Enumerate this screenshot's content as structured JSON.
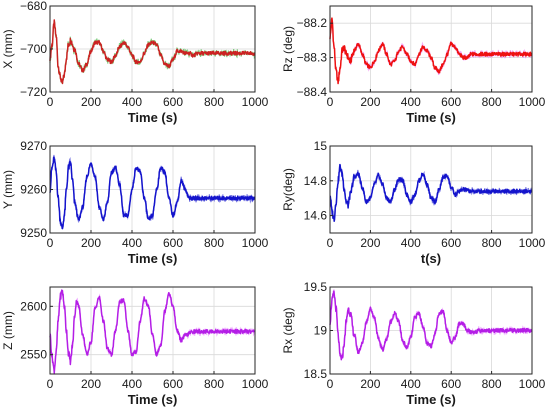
{
  "chart_data": [
    {
      "type": "line",
      "ylabel": "X (mm)",
      "xlabel": "Time (s)",
      "xlim": [
        0,
        1000
      ],
      "ylim": [
        -720,
        -680
      ],
      "xticks": [
        0,
        200,
        400,
        600,
        800,
        1000
      ],
      "yticks": [
        -680,
        -700,
        -720
      ],
      "grid": true,
      "color": "#cc2222",
      "band_color": "#22aa22",
      "series": [
        {
          "x": [
            0,
            10,
            20,
            30,
            40,
            50,
            60,
            70,
            80,
            90,
            100,
            120,
            140,
            160,
            180,
            200,
            220,
            240,
            260,
            280,
            300,
            320,
            340,
            360,
            380,
            400,
            420,
            440,
            460,
            480,
            500,
            520,
            540,
            560,
            580,
            600,
            620,
            640,
            660,
            680,
            700,
            720,
            760,
            800,
            850,
            900,
            950,
            1000
          ],
          "values": [
            -704,
            -698,
            -688,
            -694,
            -708,
            -713,
            -716,
            -712,
            -704,
            -698,
            -696,
            -700,
            -707,
            -710,
            -707,
            -701,
            -697,
            -697,
            -701,
            -705,
            -706,
            -703,
            -699,
            -697,
            -699,
            -703,
            -706,
            -706,
            -702,
            -698,
            -697,
            -698,
            -703,
            -707,
            -708,
            -705,
            -701,
            -701,
            -702,
            -702,
            -703,
            -702,
            -702,
            -702,
            -702,
            -702,
            -702,
            -702
          ]
        }
      ]
    },
    {
      "type": "line",
      "ylabel": "Rz (deg)",
      "xlabel": "Time (s)",
      "xlim": [
        0,
        1000
      ],
      "ylim": [
        -88.4,
        -88.15
      ],
      "xticks": [
        0,
        200,
        400,
        600,
        800,
        1000
      ],
      "yticks": [
        -88.2,
        -88.3,
        -88.4
      ],
      "grid": true,
      "color": "#ee1111",
      "band_color": "#ee66ee",
      "series": [
        {
          "x": [
            0,
            10,
            20,
            30,
            40,
            50,
            60,
            70,
            80,
            100,
            120,
            140,
            160,
            180,
            200,
            220,
            240,
            260,
            280,
            300,
            320,
            340,
            360,
            380,
            400,
            420,
            440,
            460,
            480,
            500,
            520,
            540,
            560,
            580,
            600,
            620,
            640,
            660,
            680,
            700,
            720,
            760,
            800,
            850,
            900,
            950,
            1000
          ],
          "values": [
            -88.24,
            -88.19,
            -88.27,
            -88.34,
            -88.37,
            -88.33,
            -88.28,
            -88.27,
            -88.29,
            -88.31,
            -88.28,
            -88.26,
            -88.29,
            -88.32,
            -88.33,
            -88.31,
            -88.28,
            -88.26,
            -88.29,
            -88.32,
            -88.31,
            -88.28,
            -88.27,
            -88.29,
            -88.31,
            -88.32,
            -88.29,
            -88.27,
            -88.28,
            -88.3,
            -88.33,
            -88.34,
            -88.32,
            -88.29,
            -88.26,
            -88.27,
            -88.29,
            -88.3,
            -88.3,
            -88.29,
            -88.29,
            -88.29,
            -88.29,
            -88.29,
            -88.29,
            -88.29,
            -88.29
          ]
        }
      ]
    },
    {
      "type": "line",
      "ylabel": "Y (mm)",
      "xlabel": "Time (s)",
      "xlim": [
        0,
        1000
      ],
      "ylim": [
        9250,
        9270
      ],
      "xticks": [
        0,
        200,
        400,
        600,
        800,
        1000
      ],
      "yticks": [
        9270,
        9260,
        9250
      ],
      "grid": true,
      "color": "#1414cc",
      "band_color": "#1414cc",
      "series": [
        {
          "x": [
            0,
            10,
            20,
            30,
            40,
            50,
            60,
            70,
            80,
            90,
            100,
            110,
            120,
            140,
            160,
            180,
            200,
            220,
            240,
            260,
            280,
            300,
            320,
            340,
            360,
            380,
            400,
            420,
            440,
            460,
            480,
            500,
            520,
            540,
            560,
            580,
            600,
            620,
            640,
            660,
            680,
            700,
            750,
            800,
            850,
            900,
            950,
            1000
          ],
          "values": [
            9260,
            9265,
            9267,
            9264,
            9258,
            9253,
            9251,
            9254,
            9260,
            9265,
            9266,
            9262,
            9257,
            9253,
            9256,
            9263,
            9266,
            9263,
            9256,
            9253,
            9257,
            9264,
            9265,
            9261,
            9254,
            9254,
            9260,
            9265,
            9264,
            9258,
            9253,
            9254,
            9260,
            9265,
            9264,
            9258,
            9254,
            9257,
            9262,
            9260,
            9258,
            9258,
            9258,
            9258,
            9258,
            9258,
            9258,
            9258
          ]
        }
      ]
    },
    {
      "type": "line",
      "ylabel": "Ry(deg)",
      "xlabel": "t(s)",
      "xlim": [
        0,
        1000
      ],
      "ylim": [
        14.5,
        15
      ],
      "xticks": [
        0,
        200,
        400,
        600,
        800,
        1000
      ],
      "yticks": [
        15,
        14.8,
        14.6
      ],
      "grid": true,
      "color": "#1414cc",
      "band_color": "#1414cc",
      "series": [
        {
          "x": [
            0,
            10,
            20,
            30,
            40,
            50,
            60,
            70,
            80,
            90,
            100,
            120,
            140,
            160,
            180,
            200,
            220,
            240,
            260,
            280,
            300,
            320,
            340,
            360,
            380,
            400,
            420,
            440,
            460,
            480,
            500,
            520,
            540,
            560,
            580,
            600,
            620,
            640,
            660,
            700,
            750,
            800,
            850,
            900,
            950,
            1000
          ],
          "values": [
            14.72,
            14.62,
            14.58,
            14.68,
            14.8,
            14.88,
            14.84,
            14.76,
            14.68,
            14.66,
            14.72,
            14.82,
            14.84,
            14.76,
            14.68,
            14.7,
            14.78,
            14.83,
            14.78,
            14.7,
            14.68,
            14.75,
            14.81,
            14.8,
            14.72,
            14.68,
            14.72,
            14.8,
            14.84,
            14.78,
            14.7,
            14.68,
            14.75,
            14.82,
            14.83,
            14.76,
            14.72,
            14.74,
            14.75,
            14.74,
            14.74,
            14.74,
            14.74,
            14.74,
            14.74,
            14.74
          ]
        }
      ]
    },
    {
      "type": "line",
      "ylabel": "Z (mm)",
      "xlabel": "Time (s)",
      "xlim": [
        0,
        1000
      ],
      "ylim": [
        2530,
        2620
      ],
      "xticks": [
        0,
        200,
        400,
        600,
        800,
        1000
      ],
      "yticks": [
        2600,
        2550
      ],
      "grid": true,
      "color": "#b41ee6",
      "band_color": "#e064ff",
      "series": [
        {
          "x": [
            0,
            10,
            20,
            30,
            40,
            50,
            60,
            70,
            80,
            90,
            100,
            110,
            120,
            130,
            140,
            160,
            180,
            200,
            220,
            240,
            260,
            280,
            300,
            320,
            340,
            360,
            380,
            400,
            420,
            440,
            460,
            480,
            500,
            520,
            540,
            560,
            580,
            600,
            620,
            640,
            660,
            700,
            750,
            800,
            850,
            900,
            950,
            1000
          ],
          "values": [
            2570,
            2548,
            2534,
            2552,
            2585,
            2610,
            2616,
            2600,
            2575,
            2552,
            2543,
            2560,
            2590,
            2606,
            2600,
            2570,
            2550,
            2563,
            2598,
            2609,
            2585,
            2556,
            2550,
            2575,
            2605,
            2606,
            2575,
            2550,
            2553,
            2585,
            2608,
            2600,
            2570,
            2550,
            2560,
            2595,
            2614,
            2600,
            2575,
            2565,
            2570,
            2574,
            2574,
            2574,
            2574,
            2574,
            2574,
            2574
          ]
        }
      ]
    },
    {
      "type": "line",
      "ylabel": "Rx (deg)",
      "xlabel": "Time (s)",
      "xlim": [
        0,
        1000
      ],
      "ylim": [
        18.5,
        19.5
      ],
      "xticks": [
        0,
        200,
        400,
        600,
        800,
        1000
      ],
      "yticks": [
        19.5,
        19,
        18.5
      ],
      "grid": true,
      "color": "#b41ee6",
      "band_color": "#e064ff",
      "series": [
        {
          "x": [
            0,
            10,
            20,
            30,
            40,
            50,
            60,
            70,
            80,
            90,
            100,
            120,
            140,
            160,
            180,
            200,
            220,
            240,
            260,
            280,
            300,
            320,
            340,
            360,
            380,
            400,
            420,
            440,
            460,
            480,
            500,
            520,
            540,
            560,
            580,
            600,
            620,
            640,
            660,
            680,
            700,
            750,
            800,
            850,
            900,
            950,
            1000
          ],
          "values": [
            19.1,
            19.35,
            19.42,
            19.25,
            18.95,
            18.7,
            18.68,
            18.85,
            19.1,
            19.25,
            19.2,
            18.95,
            18.75,
            18.85,
            19.1,
            19.25,
            19.15,
            18.9,
            18.78,
            18.9,
            19.1,
            19.2,
            19.1,
            18.88,
            18.8,
            18.92,
            19.15,
            19.2,
            19.05,
            18.85,
            18.82,
            18.97,
            19.2,
            19.22,
            19.0,
            18.86,
            18.92,
            19.08,
            19.07,
            19.0,
            18.98,
            19.0,
            19.0,
            19.0,
            19.0,
            19.0,
            19.0
          ]
        }
      ]
    }
  ]
}
